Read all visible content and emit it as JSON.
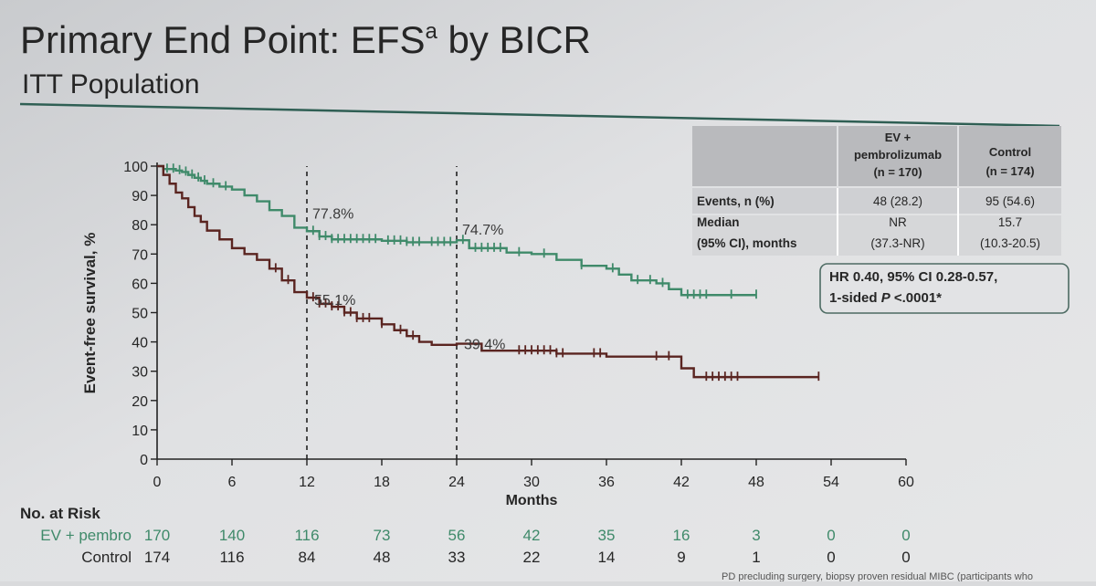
{
  "slide": {
    "title_main": "Primary End Point: EFS",
    "title_sup": "a",
    "title_tail": " by BICR",
    "subtitle": "ITT Population",
    "footnote": "PD precluding surgery, biopsy proven residual MIBC (participants who"
  },
  "colors": {
    "ev_pembro": "#3f8a6a",
    "control": "#5a2420",
    "rule": "#2f5f54",
    "text": "#2a2a2a"
  },
  "table": {
    "col_ev": [
      "EV +",
      "pembrolizumab",
      "(n = 170)"
    ],
    "col_control": [
      "Control",
      "(n = 174)"
    ],
    "rows": [
      {
        "label": [
          "Events, n (%)"
        ],
        "ev": [
          "48 (28.2)"
        ],
        "control": [
          "95 (54.6)"
        ]
      },
      {
        "label": [
          "Median",
          "(95% CI), months"
        ],
        "ev": [
          "NR",
          "(37.3-NR)"
        ],
        "control": [
          "15.7",
          "(10.3-20.5)"
        ]
      }
    ]
  },
  "hr_box": {
    "line1": "HR 0.40, 95% CI 0.28-0.57,",
    "line2_pre": "1-sided ",
    "line2_p": "P",
    "line2_post": " <.0001*"
  },
  "risk_table": {
    "header": "No. at Risk",
    "rows": [
      {
        "name": "EV + pembro",
        "counts": [
          "170",
          "140",
          "116",
          "73",
          "56",
          "42",
          "35",
          "16",
          "3",
          "0",
          "0"
        ]
      },
      {
        "name": "Control",
        "counts": [
          "174",
          "116",
          "84",
          "48",
          "33",
          "22",
          "14",
          "9",
          "1",
          "0",
          "0"
        ]
      }
    ]
  },
  "chart_data": {
    "type": "line",
    "title": "",
    "xlabel": "Months",
    "ylabel": "Event-free survival, %",
    "xlim": [
      0,
      60
    ],
    "ylim": [
      0,
      100
    ],
    "x_ticks": [
      0,
      6,
      12,
      18,
      24,
      30,
      36,
      42,
      48,
      54,
      60
    ],
    "y_ticks": [
      0,
      10,
      20,
      30,
      40,
      50,
      60,
      70,
      80,
      90,
      100
    ],
    "reference_lines_x": [
      12,
      24
    ],
    "annotations": [
      {
        "x": 12,
        "y": 77.8,
        "text": "77.8%",
        "series": "EV + pembro"
      },
      {
        "x": 24,
        "y": 74.7,
        "text": "74.7%",
        "series": "EV + pembro"
      },
      {
        "x": 12,
        "y": 55.1,
        "text": "55.1%",
        "series": "Control"
      },
      {
        "x": 24,
        "y": 39.4,
        "text": "39.4%",
        "series": "Control"
      }
    ],
    "series": [
      {
        "name": "EV + pembro",
        "color": "#3f8a6a",
        "points": [
          [
            0,
            100
          ],
          [
            0.5,
            99
          ],
          [
            1,
            99
          ],
          [
            1.5,
            98.5
          ],
          [
            2,
            98
          ],
          [
            2.5,
            97
          ],
          [
            3,
            96
          ],
          [
            3.5,
            95
          ],
          [
            4,
            94
          ],
          [
            5,
            93
          ],
          [
            6,
            92
          ],
          [
            7,
            90
          ],
          [
            8,
            88
          ],
          [
            9,
            85
          ],
          [
            10,
            83
          ],
          [
            11,
            79
          ],
          [
            12,
            77.8
          ],
          [
            13,
            76
          ],
          [
            14,
            75
          ],
          [
            16,
            75
          ],
          [
            18,
            74.5
          ],
          [
            20,
            74
          ],
          [
            22,
            74
          ],
          [
            24,
            74.7
          ],
          [
            25,
            72
          ],
          [
            28,
            70.5
          ],
          [
            30,
            70
          ],
          [
            32,
            68
          ],
          [
            34,
            66
          ],
          [
            36,
            65
          ],
          [
            37,
            63
          ],
          [
            38,
            61
          ],
          [
            40,
            60
          ],
          [
            41,
            58
          ],
          [
            42,
            56
          ],
          [
            48,
            56
          ]
        ],
        "censor_x": [
          0.8,
          1.3,
          1.8,
          2.3,
          2.8,
          3.3,
          3.8,
          4.5,
          5.5,
          12.5,
          13,
          13.5,
          14,
          14.5,
          15,
          15.5,
          16,
          16.5,
          17,
          17.5,
          18.5,
          19,
          19.5,
          20,
          20.5,
          21,
          22,
          22.5,
          23,
          23.5,
          24.5,
          25.5,
          26,
          26.5,
          27,
          27.5,
          29,
          31,
          34,
          36.5,
          38.5,
          39.5,
          40.5,
          42.5,
          43,
          43.5,
          44,
          46,
          48
        ]
      },
      {
        "name": "Control",
        "color": "#5a2420",
        "points": [
          [
            0,
            100
          ],
          [
            0.5,
            97
          ],
          [
            1,
            94
          ],
          [
            1.5,
            91
          ],
          [
            2,
            89
          ],
          [
            2.5,
            86
          ],
          [
            3,
            83
          ],
          [
            3.5,
            81
          ],
          [
            4,
            78
          ],
          [
            5,
            75
          ],
          [
            6,
            72
          ],
          [
            7,
            70
          ],
          [
            8,
            68
          ],
          [
            9,
            65
          ],
          [
            10,
            61
          ],
          [
            11,
            57
          ],
          [
            12,
            55.1
          ],
          [
            13,
            53
          ],
          [
            14,
            52
          ],
          [
            15,
            50
          ],
          [
            16,
            48
          ],
          [
            18,
            46
          ],
          [
            19,
            44
          ],
          [
            20,
            42
          ],
          [
            21,
            40
          ],
          [
            22,
            39
          ],
          [
            24,
            39.4
          ],
          [
            26,
            37
          ],
          [
            30,
            37
          ],
          [
            32,
            36
          ],
          [
            36,
            35
          ],
          [
            41,
            35
          ],
          [
            42,
            31
          ],
          [
            43,
            28
          ],
          [
            48,
            28
          ],
          [
            53,
            28
          ]
        ],
        "censor_x": [
          9.5,
          10.5,
          12.5,
          13,
          13.5,
          14,
          14.5,
          15,
          15.5,
          16,
          16.5,
          17,
          18,
          19.5,
          20.5,
          29,
          29.5,
          30,
          30.5,
          31,
          31.5,
          32,
          32.5,
          35,
          35.5,
          40,
          41,
          44,
          44.5,
          45,
          45.5,
          46,
          46.5,
          53
        ]
      }
    ]
  }
}
